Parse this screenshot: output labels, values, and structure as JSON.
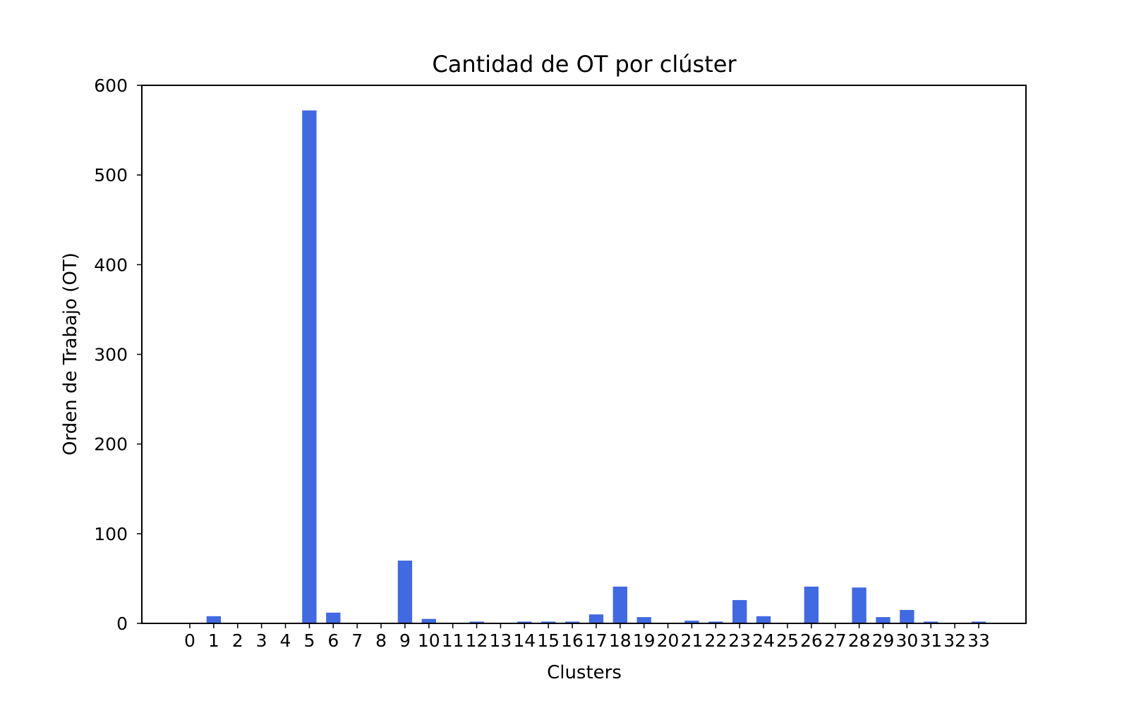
{
  "chart_data": {
    "type": "bar",
    "title": "Cantidad de OT por clúster",
    "xlabel": "Clusters",
    "ylabel": "Orden de Trabajo (OT)",
    "categories": [
      "0",
      "1",
      "2",
      "3",
      "4",
      "5",
      "6",
      "7",
      "8",
      "9",
      "10",
      "11",
      "12",
      "13",
      "14",
      "15",
      "16",
      "17",
      "18",
      "19",
      "20",
      "21",
      "22",
      "23",
      "24",
      "25",
      "26",
      "27",
      "28",
      "29",
      "30",
      "31",
      "32",
      "33"
    ],
    "values": [
      0,
      8,
      0,
      0,
      0,
      572,
      12,
      0,
      0,
      70,
      5,
      0,
      2,
      0,
      2,
      2,
      2,
      10,
      41,
      7,
      0,
      3,
      2,
      26,
      8,
      0,
      41,
      0,
      40,
      7,
      15,
      2,
      0,
      2
    ],
    "ylim": [
      0,
      600
    ],
    "yticks": [
      0,
      100,
      200,
      300,
      400,
      500,
      600
    ],
    "grid": false,
    "legend": false,
    "bar_color": "#4169E1"
  }
}
